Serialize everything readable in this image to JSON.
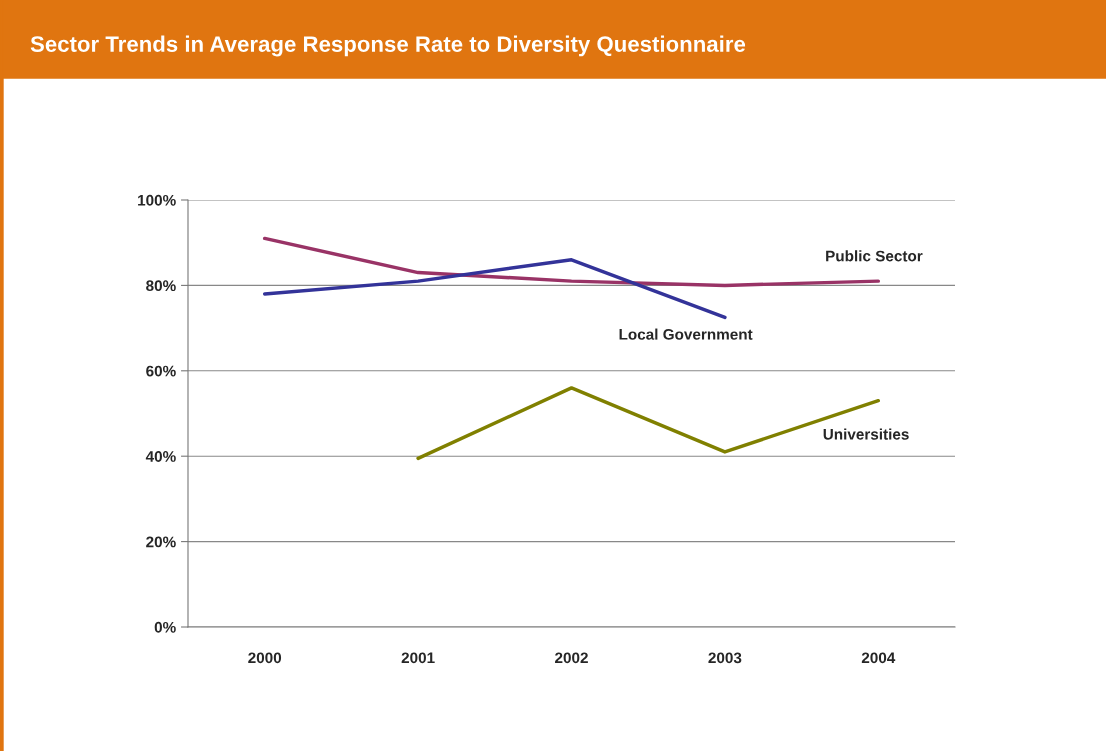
{
  "chart_data": {
    "type": "line",
    "title": "Sector Trends in Average Response Rate to Diversity Questionnaire",
    "categories": [
      "2000",
      "2001",
      "2002",
      "2003",
      "2004"
    ],
    "series": [
      {
        "name": "Public Sector",
        "color": "#993366",
        "values": [
          91,
          83,
          81,
          80,
          81
        ]
      },
      {
        "name": "Local Government",
        "color": "#333399",
        "values": [
          78,
          81,
          86,
          72.5,
          null
        ]
      },
      {
        "name": "Universities",
        "color": "#808000",
        "values": [
          null,
          39.5,
          56,
          41,
          53
        ]
      }
    ],
    "ylim": [
      0,
      100
    ],
    "yticks": [
      {
        "value": 0,
        "label": "0%"
      },
      {
        "value": 20,
        "label": "20%"
      },
      {
        "value": 40,
        "label": "40%"
      },
      {
        "value": 60,
        "label": "60%"
      },
      {
        "value": 80,
        "label": "80%"
      },
      {
        "value": 100,
        "label": "100%"
      }
    ],
    "grid": "y",
    "legend": false,
    "marker": "none",
    "line_style": "solid"
  }
}
